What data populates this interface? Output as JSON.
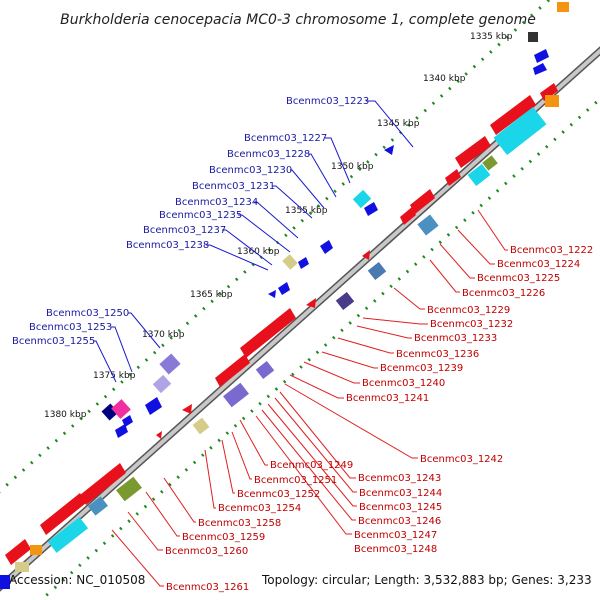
{
  "title": "Burkholderia cenocepacia MC0-3 chromosome 1, complete genome",
  "accession": "Accession: NC_010508",
  "topology": "Topology: circular; Length: 3,532,883 bp; Genes: 3,233",
  "kbp_labels": [
    "1335 kbp",
    "1340 kbp",
    "1345 kbp",
    "1350 kbp",
    "1355 kbp",
    "1360 kbp",
    "1365 kbp",
    "1370 kbp",
    "1375 kbp",
    "1380 kbp"
  ],
  "genes_blue": [
    "Bcenmc03_1223",
    "Bcenmc03_1227",
    "Bcenmc03_1228",
    "Bcenmc03_1230",
    "Bcenmc03_1231",
    "Bcenmc03_1234",
    "Bcenmc03_1235",
    "Bcenmc03_1237",
    "Bcenmc03_1238",
    "Bcenmc03_1250",
    "Bcenmc03_1253",
    "Bcenmc03_1255"
  ],
  "genes_red": [
    "Bcenmc03_1222",
    "Bcenmc03_1224",
    "Bcenmc03_1225",
    "Bcenmc03_1226",
    "Bcenmc03_1229",
    "Bcenmc03_1232",
    "Bcenmc03_1233",
    "Bcenmc03_1236",
    "Bcenmc03_1239",
    "Bcenmc03_1240",
    "Bcenmc03_1241",
    "Bcenmc03_1242",
    "Bcenmc03_1249",
    "Bcenmc03_1243",
    "Bcenmc03_1251",
    "Bcenmc03_1244",
    "Bcenmc03_1252",
    "Bcenmc03_1245",
    "Bcenmc03_1254",
    "Bcenmc03_1246",
    "Bcenmc03_1258",
    "Bcenmc03_1247",
    "Bcenmc03_1259",
    "Bcenmc03_1248",
    "Bcenmc03_1260",
    "Bcenmc03_1261"
  ],
  "colors": {
    "forward": "#e8101a",
    "reverse": "#1010e0",
    "backbone": "#888888",
    "ticks": "#1e8a1e",
    "cyan": "#1ad6e8",
    "orange": "#f59410",
    "olive": "#7a9a30"
  }
}
